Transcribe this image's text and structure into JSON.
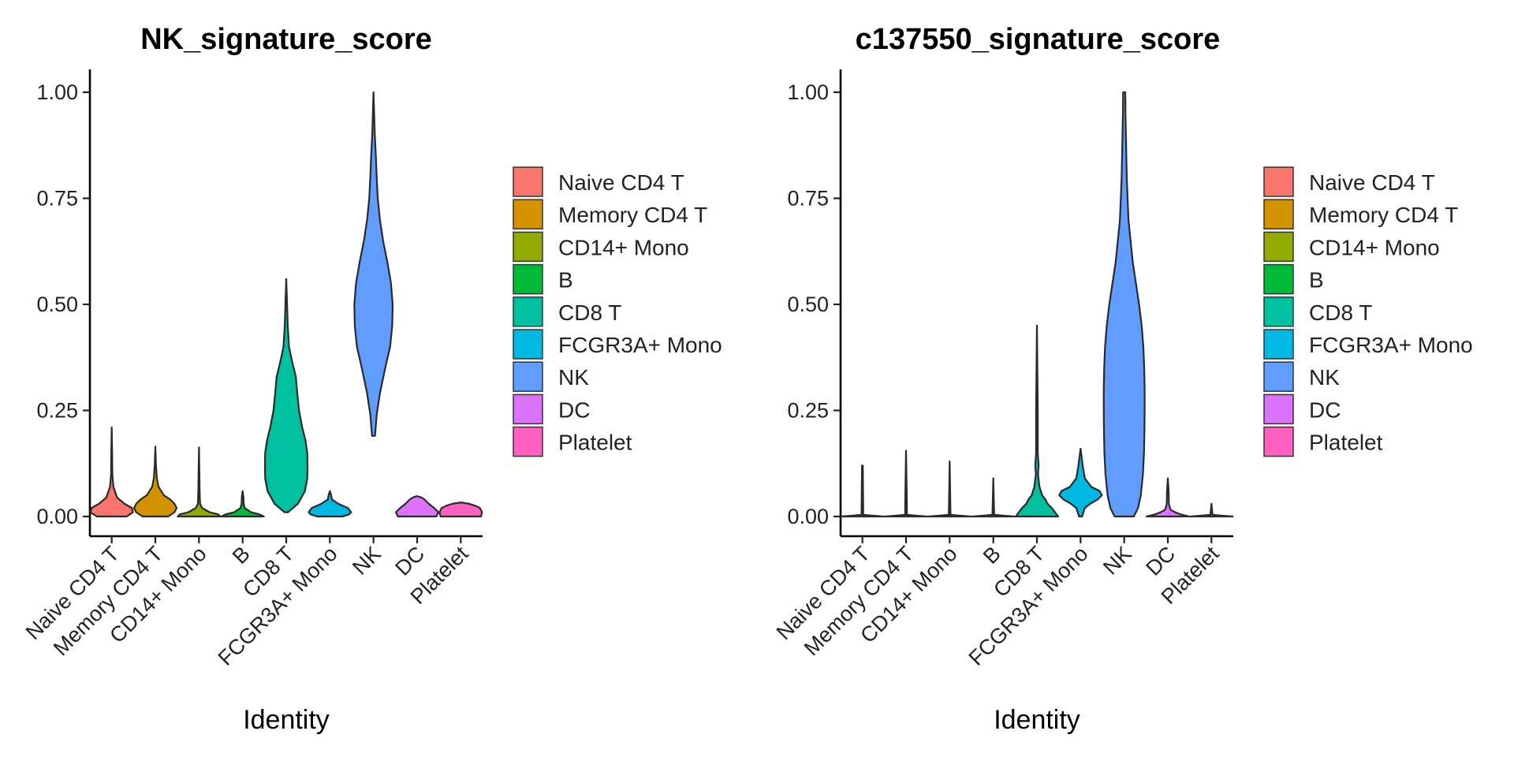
{
  "chart_data": [
    {
      "type": "violin",
      "title": "NK_signature_score",
      "xlabel": "Identity",
      "ylabel": "",
      "ylim": [
        -0.04,
        1.05
      ],
      "yticks": [
        "0.00",
        "0.25",
        "0.50",
        "0.75",
        "1.00"
      ],
      "categories": [
        "Naive CD4 T",
        "Memory CD4 T",
        "CD14+ Mono",
        "B",
        "CD8 T",
        "FCGR3A+ Mono",
        "NK",
        "DC",
        "Platelet"
      ],
      "colors": [
        "#F8766D",
        "#D39200",
        "#93AA00",
        "#00BA38",
        "#00C19F",
        "#00B9E3",
        "#619CFF",
        "#DB72FB",
        "#FF61C3"
      ],
      "legend_position": "right",
      "grid": false,
      "violins": [
        {
          "category": "Naive CD4 T",
          "profile": [
            [
              0.0,
              0.7
            ],
            [
              0.01,
              1.0
            ],
            [
              0.02,
              0.95
            ],
            [
              0.03,
              0.6
            ],
            [
              0.045,
              0.25
            ],
            [
              0.07,
              0.08
            ],
            [
              0.1,
              0.03
            ],
            [
              0.15,
              0.02
            ],
            [
              0.21,
              0.0
            ]
          ]
        },
        {
          "category": "Memory CD4 T",
          "profile": [
            [
              0.0,
              0.6
            ],
            [
              0.01,
              0.9
            ],
            [
              0.02,
              1.0
            ],
            [
              0.03,
              0.9
            ],
            [
              0.04,
              0.7
            ],
            [
              0.05,
              0.4
            ],
            [
              0.07,
              0.15
            ],
            [
              0.09,
              0.07
            ],
            [
              0.12,
              0.03
            ],
            [
              0.165,
              0.0
            ]
          ]
        },
        {
          "category": "CD14+ Mono",
          "profile": [
            [
              0.0,
              1.0
            ],
            [
              0.005,
              0.9
            ],
            [
              0.01,
              0.5
            ],
            [
              0.02,
              0.15
            ],
            [
              0.03,
              0.05
            ],
            [
              0.06,
              0.03
            ],
            [
              0.1,
              0.02
            ],
            [
              0.163,
              0.0
            ]
          ]
        },
        {
          "category": "B",
          "profile": [
            [
              0.0,
              1.0
            ],
            [
              0.005,
              0.8
            ],
            [
              0.01,
              0.4
            ],
            [
              0.02,
              0.1
            ],
            [
              0.03,
              0.05
            ],
            [
              0.045,
              0.04
            ],
            [
              0.06,
              0.0
            ]
          ]
        },
        {
          "category": "CD8 T",
          "profile": [
            [
              0.01,
              0.08
            ],
            [
              0.03,
              0.55
            ],
            [
              0.06,
              0.88
            ],
            [
              0.09,
              0.99
            ],
            [
              0.12,
              1.0
            ],
            [
              0.15,
              0.99
            ],
            [
              0.18,
              0.9
            ],
            [
              0.21,
              0.75
            ],
            [
              0.25,
              0.6
            ],
            [
              0.29,
              0.52
            ],
            [
              0.33,
              0.45
            ],
            [
              0.36,
              0.3
            ],
            [
              0.4,
              0.13
            ],
            [
              0.45,
              0.07
            ],
            [
              0.5,
              0.04
            ],
            [
              0.56,
              0.0
            ]
          ]
        },
        {
          "category": "FCGR3A+ Mono",
          "profile": [
            [
              0.0,
              0.6
            ],
            [
              0.005,
              0.9
            ],
            [
              0.01,
              1.0
            ],
            [
              0.02,
              0.85
            ],
            [
              0.03,
              0.4
            ],
            [
              0.04,
              0.1
            ],
            [
              0.05,
              0.06
            ],
            [
              0.06,
              0.0
            ]
          ]
        },
        {
          "category": "NK",
          "profile": [
            [
              0.19,
              0.07
            ],
            [
              0.24,
              0.15
            ],
            [
              0.29,
              0.3
            ],
            [
              0.35,
              0.55
            ],
            [
              0.4,
              0.78
            ],
            [
              0.45,
              0.88
            ],
            [
              0.5,
              0.9
            ],
            [
              0.55,
              0.82
            ],
            [
              0.6,
              0.65
            ],
            [
              0.65,
              0.45
            ],
            [
              0.7,
              0.3
            ],
            [
              0.75,
              0.2
            ],
            [
              0.8,
              0.15
            ],
            [
              0.85,
              0.11
            ],
            [
              0.9,
              0.06
            ],
            [
              0.95,
              0.03
            ],
            [
              1.0,
              0.0
            ]
          ]
        },
        {
          "category": "DC",
          "profile": [
            [
              0.0,
              0.9
            ],
            [
              0.01,
              1.0
            ],
            [
              0.02,
              0.8
            ],
            [
              0.03,
              0.55
            ],
            [
              0.04,
              0.35
            ],
            [
              0.045,
              0.2
            ],
            [
              0.048,
              0.0
            ]
          ]
        },
        {
          "category": "Platelet",
          "profile": [
            [
              0.0,
              0.95
            ],
            [
              0.01,
              1.0
            ],
            [
              0.02,
              0.9
            ],
            [
              0.025,
              0.7
            ],
            [
              0.03,
              0.4
            ],
            [
              0.033,
              0.0
            ]
          ]
        }
      ]
    },
    {
      "type": "violin",
      "title": "c137550_signature_score",
      "xlabel": "Identity",
      "ylabel": "",
      "ylim": [
        -0.04,
        1.05
      ],
      "yticks": [
        "0.00",
        "0.25",
        "0.50",
        "0.75",
        "1.00"
      ],
      "categories": [
        "Naive CD4 T",
        "Memory CD4 T",
        "CD14+ Mono",
        "B",
        "CD8 T",
        "FCGR3A+ Mono",
        "NK",
        "DC",
        "Platelet"
      ],
      "colors": [
        "#F8766D",
        "#D39200",
        "#93AA00",
        "#00BA38",
        "#00C19F",
        "#00B9E3",
        "#619CFF",
        "#DB72FB",
        "#FF61C3"
      ],
      "legend_position": "right",
      "grid": false,
      "violins": [
        {
          "category": "Naive CD4 T",
          "profile": [
            [
              0.0,
              1.0
            ],
            [
              0.002,
              0.5
            ],
            [
              0.004,
              0.04
            ],
            [
              0.12,
              0.02
            ],
            [
              0.12,
              0.0
            ]
          ]
        },
        {
          "category": "Memory CD4 T",
          "profile": [
            [
              0.0,
              1.0
            ],
            [
              0.002,
              0.5
            ],
            [
              0.004,
              0.04
            ],
            [
              0.03,
              0.04
            ],
            [
              0.155,
              0.0
            ]
          ]
        },
        {
          "category": "CD14+ Mono",
          "profile": [
            [
              0.0,
              1.0
            ],
            [
              0.002,
              0.5
            ],
            [
              0.004,
              0.04
            ],
            [
              0.13,
              0.0
            ]
          ]
        },
        {
          "category": "B",
          "profile": [
            [
              0.0,
              1.0
            ],
            [
              0.002,
              0.5
            ],
            [
              0.004,
              0.04
            ],
            [
              0.09,
              0.0
            ]
          ]
        },
        {
          "category": "CD8 T",
          "profile": [
            [
              0.0,
              1.0
            ],
            [
              0.01,
              0.85
            ],
            [
              0.02,
              0.7
            ],
            [
              0.03,
              0.5
            ],
            [
              0.04,
              0.4
            ],
            [
              0.05,
              0.25
            ],
            [
              0.07,
              0.12
            ],
            [
              0.1,
              0.05
            ],
            [
              0.12,
              0.08
            ],
            [
              0.15,
              0.04
            ],
            [
              0.25,
              0.04
            ],
            [
              0.35,
              0.02
            ],
            [
              0.45,
              0.0
            ]
          ]
        },
        {
          "category": "FCGR3A+ Mono",
          "profile": [
            [
              0.0,
              0.07
            ],
            [
              0.02,
              0.2
            ],
            [
              0.03,
              0.45
            ],
            [
              0.04,
              0.8
            ],
            [
              0.05,
              1.0
            ],
            [
              0.06,
              0.9
            ],
            [
              0.07,
              0.5
            ],
            [
              0.09,
              0.2
            ],
            [
              0.12,
              0.1
            ],
            [
              0.14,
              0.05
            ],
            [
              0.16,
              0.0
            ]
          ]
        },
        {
          "category": "NK",
          "profile": [
            [
              0.0,
              0.45
            ],
            [
              0.02,
              0.65
            ],
            [
              0.05,
              0.78
            ],
            [
              0.1,
              0.88
            ],
            [
              0.15,
              0.93
            ],
            [
              0.2,
              0.95
            ],
            [
              0.25,
              0.96
            ],
            [
              0.3,
              0.96
            ],
            [
              0.35,
              0.94
            ],
            [
              0.4,
              0.9
            ],
            [
              0.45,
              0.82
            ],
            [
              0.5,
              0.7
            ],
            [
              0.55,
              0.55
            ],
            [
              0.6,
              0.4
            ],
            [
              0.7,
              0.2
            ],
            [
              0.8,
              0.12
            ],
            [
              0.9,
              0.08
            ],
            [
              0.95,
              0.06
            ],
            [
              1.0,
              0.05
            ]
          ]
        },
        {
          "category": "DC",
          "profile": [
            [
              0.0,
              1.0
            ],
            [
              0.005,
              0.6
            ],
            [
              0.01,
              0.35
            ],
            [
              0.015,
              0.15
            ],
            [
              0.02,
              0.1
            ],
            [
              0.03,
              0.05
            ],
            [
              0.06,
              0.04
            ],
            [
              0.09,
              0.0
            ]
          ]
        },
        {
          "category": "Platelet",
          "profile": [
            [
              0.0,
              1.0
            ],
            [
              0.002,
              0.5
            ],
            [
              0.004,
              0.05
            ],
            [
              0.03,
              0.0
            ]
          ]
        }
      ]
    }
  ]
}
